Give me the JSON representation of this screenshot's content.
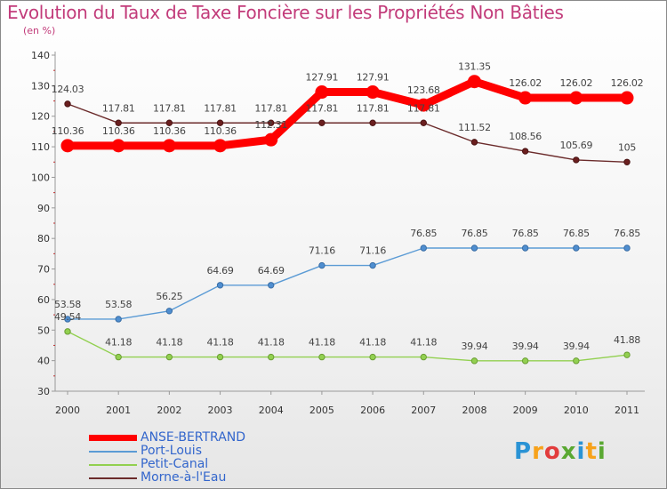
{
  "chart_data": {
    "type": "line",
    "title": "Evolution du Taux de Taxe Foncière sur les Propriétés Non Bâties",
    "ylabel": "(en %)",
    "xlabel": "",
    "ylim": [
      30,
      140
    ],
    "yticks": [
      30,
      40,
      50,
      60,
      70,
      80,
      90,
      100,
      110,
      120,
      130,
      140
    ],
    "categories": [
      "2000",
      "2001",
      "2002",
      "2003",
      "2004",
      "2005",
      "2006",
      "2007",
      "2008",
      "2009",
      "2010",
      "2011"
    ],
    "grid": false,
    "legend": "bottom-left",
    "series": [
      {
        "name": "ANSE-BERTRAND",
        "color": "#ff0000",
        "values": [
          110.36,
          110.36,
          110.36,
          110.36,
          112.31,
          127.91,
          127.91,
          123.68,
          131.35,
          126.02,
          126.02,
          126.02
        ]
      },
      {
        "name": "Port-Louis",
        "color": "#5b9bd5",
        "values": [
          53.58,
          53.58,
          56.25,
          64.69,
          64.69,
          71.16,
          71.16,
          76.85,
          76.85,
          76.85,
          76.85,
          76.85
        ]
      },
      {
        "name": "Petit-Canal",
        "color": "#92d050",
        "values": [
          49.54,
          41.18,
          41.18,
          41.18,
          41.18,
          41.18,
          41.18,
          41.18,
          39.94,
          39.94,
          39.94,
          41.88
        ]
      },
      {
        "name": "Morne-à-l'Eau",
        "color": "#6b2b2b",
        "values": [
          124.03,
          117.81,
          117.81,
          117.81,
          117.81,
          117.81,
          117.81,
          117.81,
          111.52,
          108.56,
          105.69,
          105
        ]
      }
    ],
    "data_labels": [
      [
        "110.36",
        "110.36",
        "110.36",
        "110.36",
        "112.31",
        "127.91",
        "127.91",
        "123.68",
        "131.35",
        "126.02",
        "126.02",
        "126.02"
      ],
      [
        "53.58",
        "53.58",
        "56.25",
        "64.69",
        "64.69",
        "71.16",
        "71.16",
        "76.85",
        "76.85",
        "76.85",
        "76.85",
        "76.85"
      ],
      [
        "49.54",
        "41.18",
        "41.18",
        "41.18",
        "41.18",
        "41.18",
        "41.18",
        "41.18",
        "39.94",
        "39.94",
        "39.94",
        "41.88"
      ],
      [
        "124.03",
        "117.81",
        "117.81",
        "117.81",
        "117.81",
        "117.81",
        "117.81",
        "117.81",
        "111.52",
        "108.56",
        "105.69",
        "105"
      ]
    ]
  },
  "brand": {
    "letters": [
      "P",
      "r",
      "o",
      "x",
      "i",
      "t",
      "i"
    ]
  }
}
